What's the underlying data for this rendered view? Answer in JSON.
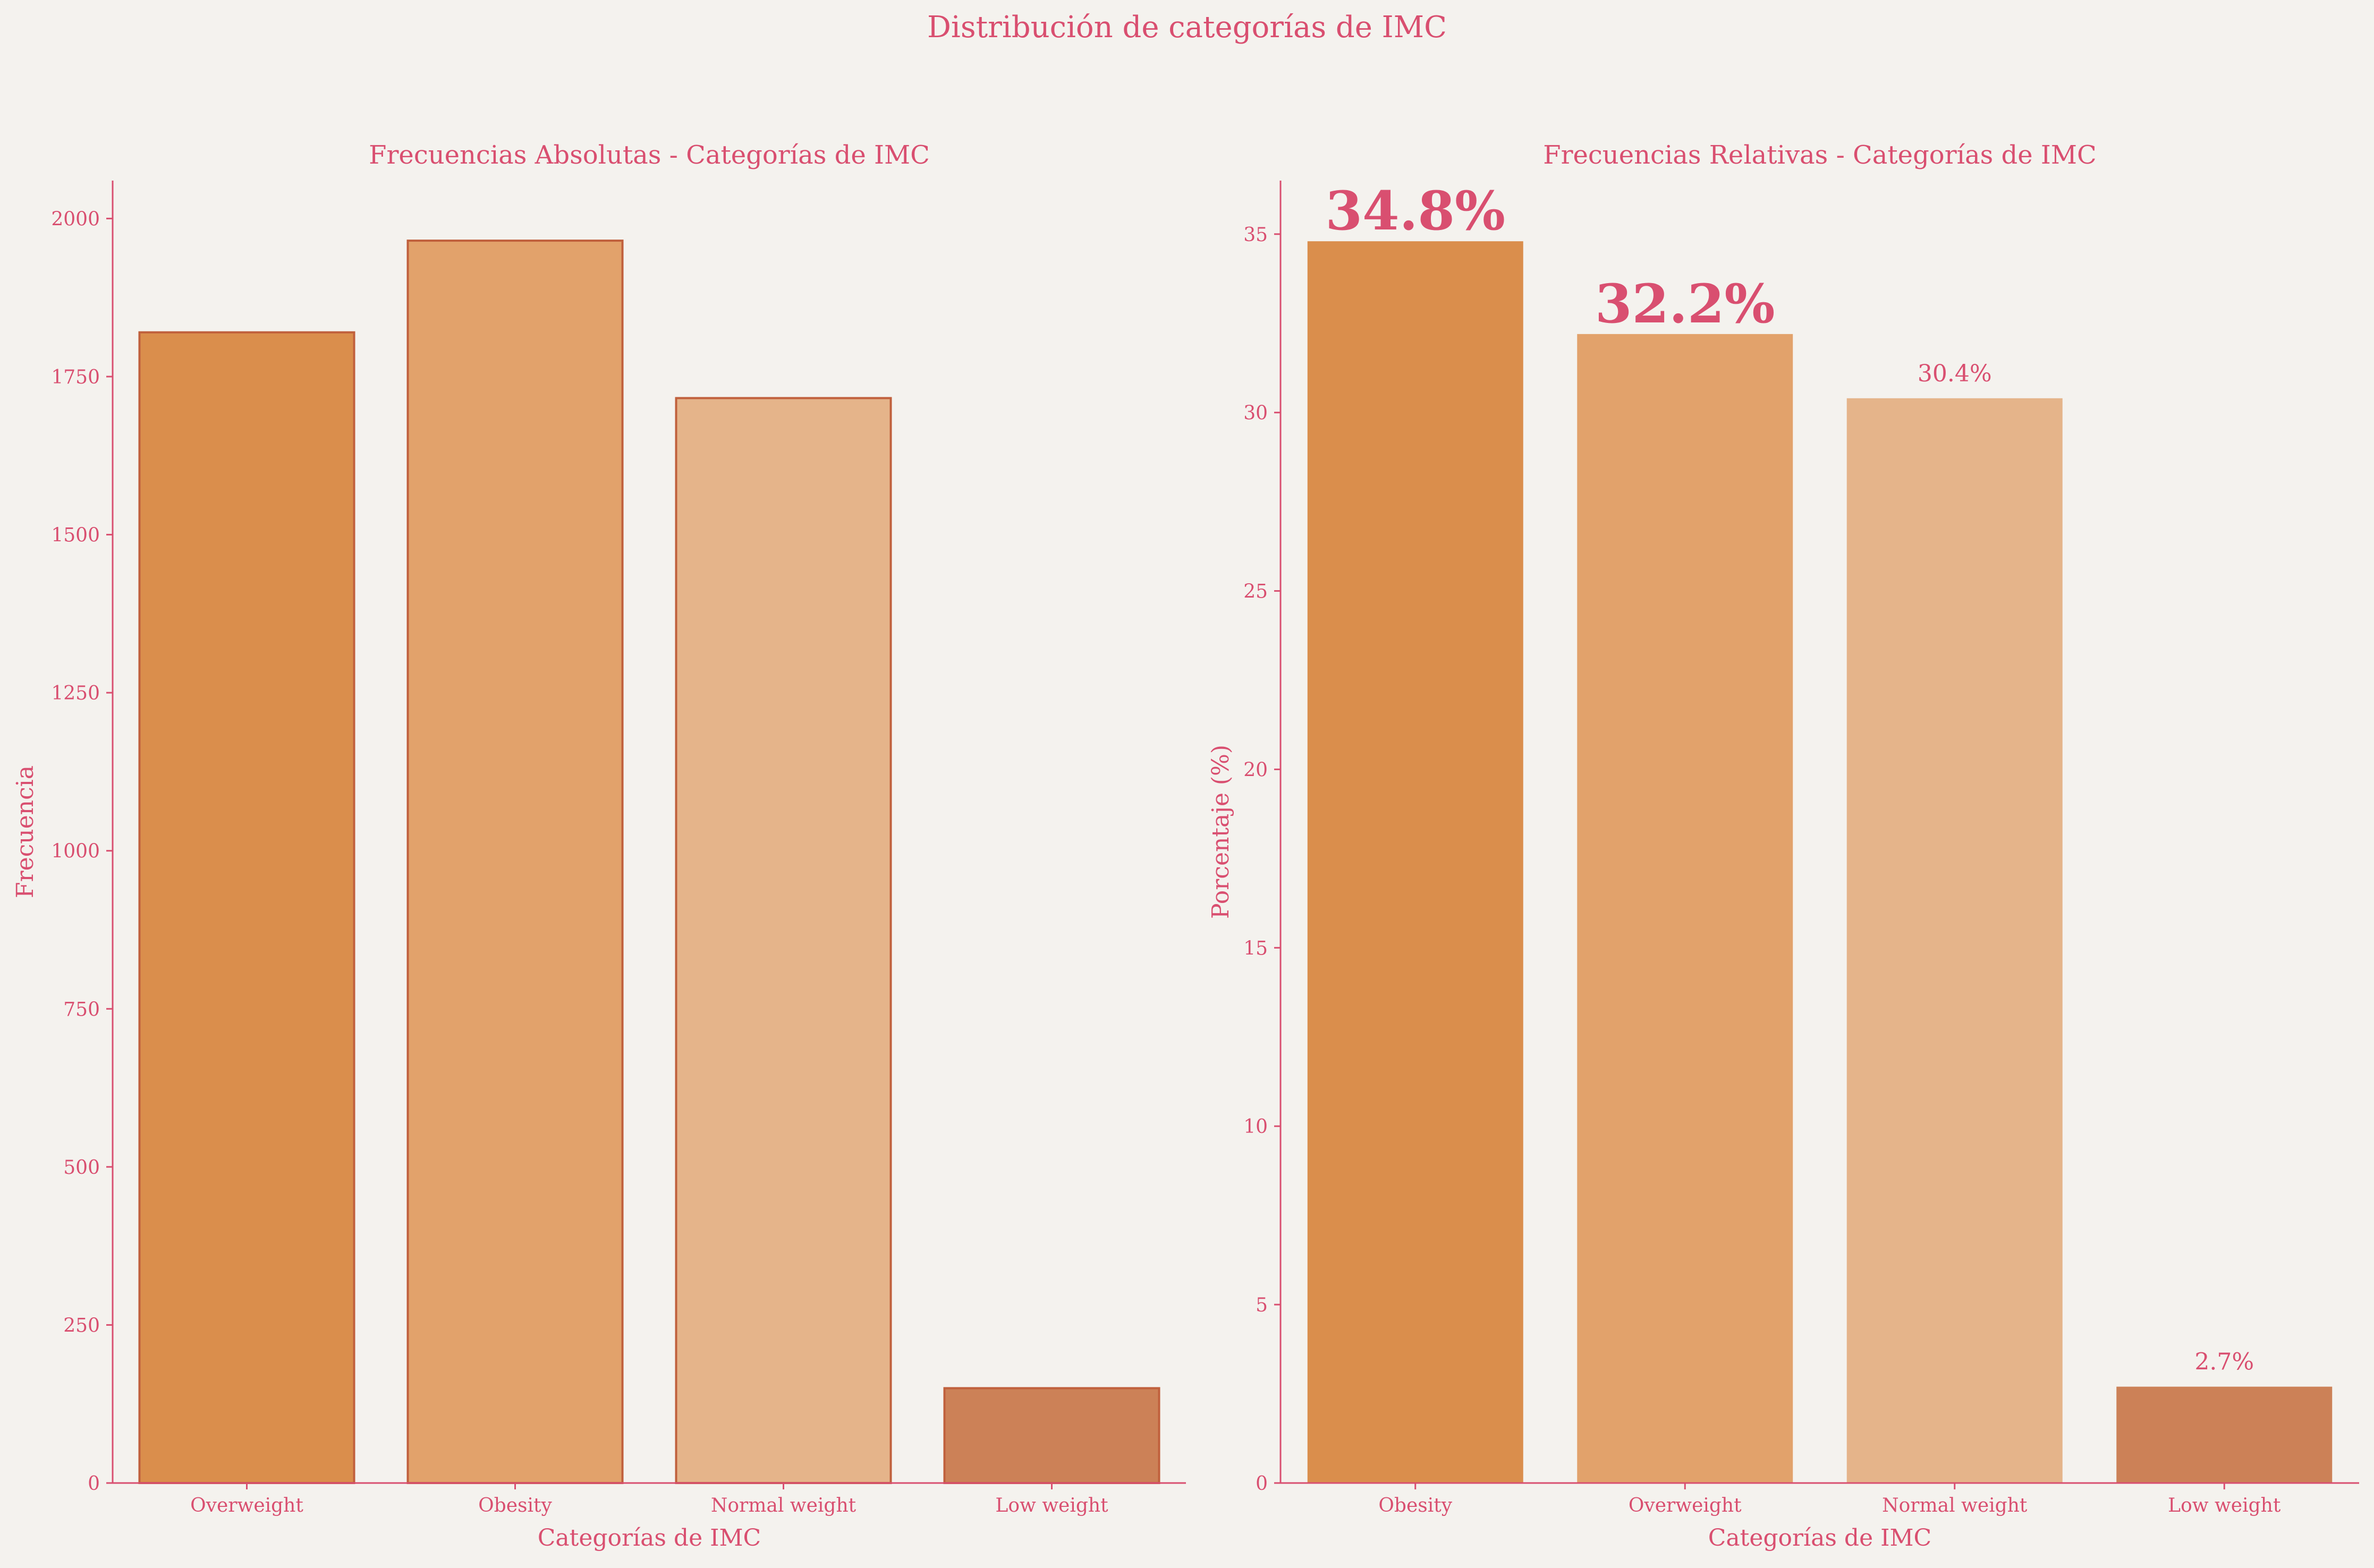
{
  "suptitle": "Distribución de categorías de IMC",
  "colors": {
    "text": "#d94f70",
    "axis": "#d94f70",
    "background": "#f4f2ee",
    "edge": "#c0603c"
  },
  "chart_data": [
    {
      "type": "bar",
      "title": "Frecuencias Absolutas - Categorías de IMC",
      "xlabel": "Categorías de IMC",
      "ylabel": "Frecuencia",
      "categories": [
        "Overweight",
        "Obesity",
        "Normal weight",
        "Low weight"
      ],
      "values": [
        1820,
        1965,
        1716,
        150
      ],
      "bar_colors": [
        "#da8e4c",
        "#e2a26b",
        "#e5b48a",
        "#cc8157"
      ],
      "bar_edges": true,
      "ylim": [
        0,
        2060
      ],
      "yticks": [
        0,
        250,
        500,
        750,
        1000,
        1250,
        1500,
        1750,
        2000
      ],
      "grid": false,
      "legend": "none"
    },
    {
      "type": "bar",
      "title": "Frecuencias Relativas - Categorías de IMC",
      "xlabel": "Categorías de IMC",
      "ylabel": "Porcentaje (%)",
      "categories": [
        "Obesity",
        "Overweight",
        "Normal weight",
        "Low weight"
      ],
      "values": [
        34.8,
        32.2,
        30.4,
        2.7
      ],
      "data_labels": [
        "34.8%",
        "32.2%",
        "30.4%",
        "2.7%"
      ],
      "highlighted": [
        true,
        true,
        false,
        false
      ],
      "bar_colors": [
        "#da8e4c",
        "#e2a26b",
        "#e5b48a",
        "#cc8157"
      ],
      "bar_edges": false,
      "ylim": [
        0,
        36.5
      ],
      "yticks": [
        0,
        5,
        10,
        15,
        20,
        25,
        30,
        35
      ],
      "grid": false,
      "legend": "none"
    }
  ]
}
